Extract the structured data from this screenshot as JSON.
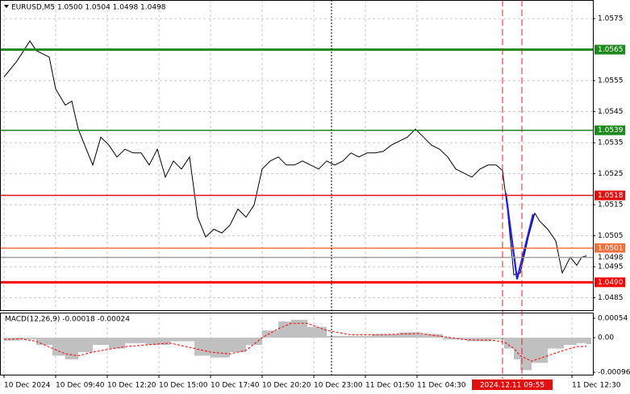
{
  "chart_data": [
    {
      "type": "line",
      "title": "EURUSD,M5  1.0500 1.0504 1.0498 1.0498",
      "xlim": [
        -2.5,
        365
      ],
      "ylim": [
        1.0481,
        1.0581
      ],
      "yticks": [
        1.0575,
        1.0555,
        1.0545,
        1.0535,
        1.0525,
        1.0515,
        1.0505,
        1.0495,
        1.0485
      ],
      "xticks": [
        {
          "value": 0,
          "label": "10 Dec 2024"
        },
        {
          "value": 32,
          "label": "10 Dec 09:40"
        },
        {
          "value": 64,
          "label": "10 Dec 12:20"
        },
        {
          "value": 96,
          "label": "10 Dec 15:00"
        },
        {
          "value": 128,
          "label": "10 Dec 17:40"
        },
        {
          "value": 160,
          "label": "10 Dec 20:20"
        },
        {
          "value": 192,
          "label": "10 Dec 23:00"
        },
        {
          "value": 224,
          "label": "11 Dec 01:50"
        },
        {
          "value": 256,
          "label": "11 Dec 04:30"
        },
        {
          "value": 321,
          "label": "2024.12.11 09:55"
        },
        {
          "value": 352,
          "label": "11 Dec 12:30"
        }
      ],
      "cursor_tick": 9,
      "grid": true,
      "levels": [
        {
          "value": 1.0565,
          "color": "#1e8a1e",
          "bold": true
        },
        {
          "value": 1.0539,
          "color": "#1e8a1e",
          "bold": false
        },
        {
          "value": 1.0518,
          "color": "#e01010",
          "bold": false
        },
        {
          "value": 1.0501,
          "color": "#f07040",
          "bold": false
        },
        {
          "value": 1.0498,
          "color": "#a0a0a0",
          "bold": false
        },
        {
          "value": {
            "value": 1.049,
            "label": "1.0490"
          },
          "color": "#ff0000",
          "bold": true
        }
      ],
      "series": [
        {
          "color": "#000000",
          "x": [
            0,
            8,
            16,
            20,
            28,
            32,
            38,
            42,
            46,
            50,
            55,
            60,
            65,
            70,
            75,
            80,
            85,
            90,
            95,
            100,
            105,
            110,
            115,
            120,
            125,
            130,
            135,
            140,
            145,
            150,
            155,
            160,
            165,
            170,
            175,
            180,
            185,
            190,
            195,
            200,
            205,
            210,
            215,
            220,
            225,
            230,
            235,
            240,
            245,
            250,
            255,
            260,
            265,
            270,
            275,
            280,
            285,
            290,
            295,
            300,
            305,
            309,
            312,
            316,
            320,
            325,
            329,
            332,
            337,
            342,
            346,
            351,
            355,
            358,
            361
          ],
          "values": [
            1.05562,
            1.05613,
            1.05678,
            1.05647,
            1.05626,
            1.05523,
            1.05471,
            1.05484,
            1.05394,
            1.05342,
            1.05278,
            1.05368,
            1.05342,
            1.05304,
            1.05329,
            1.05317,
            1.05317,
            1.05278,
            1.05329,
            1.05239,
            1.05291,
            1.05265,
            1.05304,
            1.0511,
            1.05046,
            1.05071,
            1.05059,
            1.05084,
            1.05136,
            1.0511,
            1.05149,
            1.05265,
            1.05291,
            1.05304,
            1.05278,
            1.05278,
            1.05291,
            1.05278,
            1.05265,
            1.05291,
            1.05278,
            1.05291,
            1.05317,
            1.05304,
            1.05317,
            1.05317,
            1.05322,
            1.05342,
            1.05355,
            1.05368,
            1.05394,
            1.05368,
            1.05342,
            1.05329,
            1.05304,
            1.05265,
            1.05252,
            1.05239,
            1.05265,
            1.05278,
            1.05278,
            1.0526,
            1.05136,
            1.04924,
            1.0493,
            1.05046,
            1.05123,
            1.05097,
            1.05071,
            1.05033,
            1.0493,
            1.04981,
            1.04955,
            1.04981,
            1.04985
          ]
        },
        {
          "color": "#1c1cff",
          "x": [
            311,
            318,
            328
          ],
          "values": [
            1.05188,
            1.0491,
            1.0512
          ]
        }
      ]
    },
    {
      "type": "macd",
      "title": "MACD(12,26,9) -0.00018 -0.00024",
      "xlim": [
        -2.5,
        365
      ],
      "ylim": [
        -0.00096,
        0.00054
      ],
      "yticks": [
        0.00054,
        {
          "value": 0,
          "label": "0.00"
        },
        -0.00096
      ],
      "x": [
        0,
        10,
        20,
        30,
        38,
        46,
        55,
        65,
        75,
        88,
        103,
        118,
        128,
        140,
        150,
        160,
        170,
        178,
        188,
        200,
        215,
        228,
        245,
        258,
        272,
        287,
        302,
        310,
        316,
        320,
        327,
        337,
        347,
        355,
        361
      ],
      "series": [
        {
          "style": "histogram",
          "color": "#c0c0c0",
          "values": [
            -8e-05,
            -5e-05,
            -0.0002,
            -0.0005,
            -0.0006,
            -0.0004,
            -0.0002,
            -0.0003,
            -0.00015,
            -0.0002,
            -0.0001,
            -0.0005,
            -0.00055,
            -0.0004,
            -0.0002,
            0.0002,
            0.00045,
            0.0005,
            0.0003,
            5e-05,
            5e-05,
            0.0001,
            0.00015,
            0.0001,
            -5e-05,
            -0.0001,
            -5e-05,
            -0.0003,
            -0.0006,
            -0.0009,
            -0.0007,
            -0.0003,
            -0.0002,
            -0.00015,
            -0.00018
          ]
        },
        {
          "style": "dashed",
          "color": "#ff0000",
          "values": [
            -5e-05,
            -3e-05,
            -0.0001,
            -0.0003,
            -0.00045,
            -0.0005,
            -0.0004,
            -0.00032,
            -0.00025,
            -0.0002,
            -0.00015,
            -0.0003,
            -0.0004,
            -0.00045,
            -0.00035,
            0,
            0.00025,
            0.0004,
            0.0004,
            0.0002,
            8e-05,
            8e-05,
            0.0001,
            0.00012,
            3e-05,
            -6e-05,
            -7e-05,
            -0.00012,
            -0.0003,
            -0.0005,
            -0.00065,
            -0.0005,
            -0.00035,
            -0.00025,
            -0.00024
          ]
        }
      ]
    }
  ]
}
